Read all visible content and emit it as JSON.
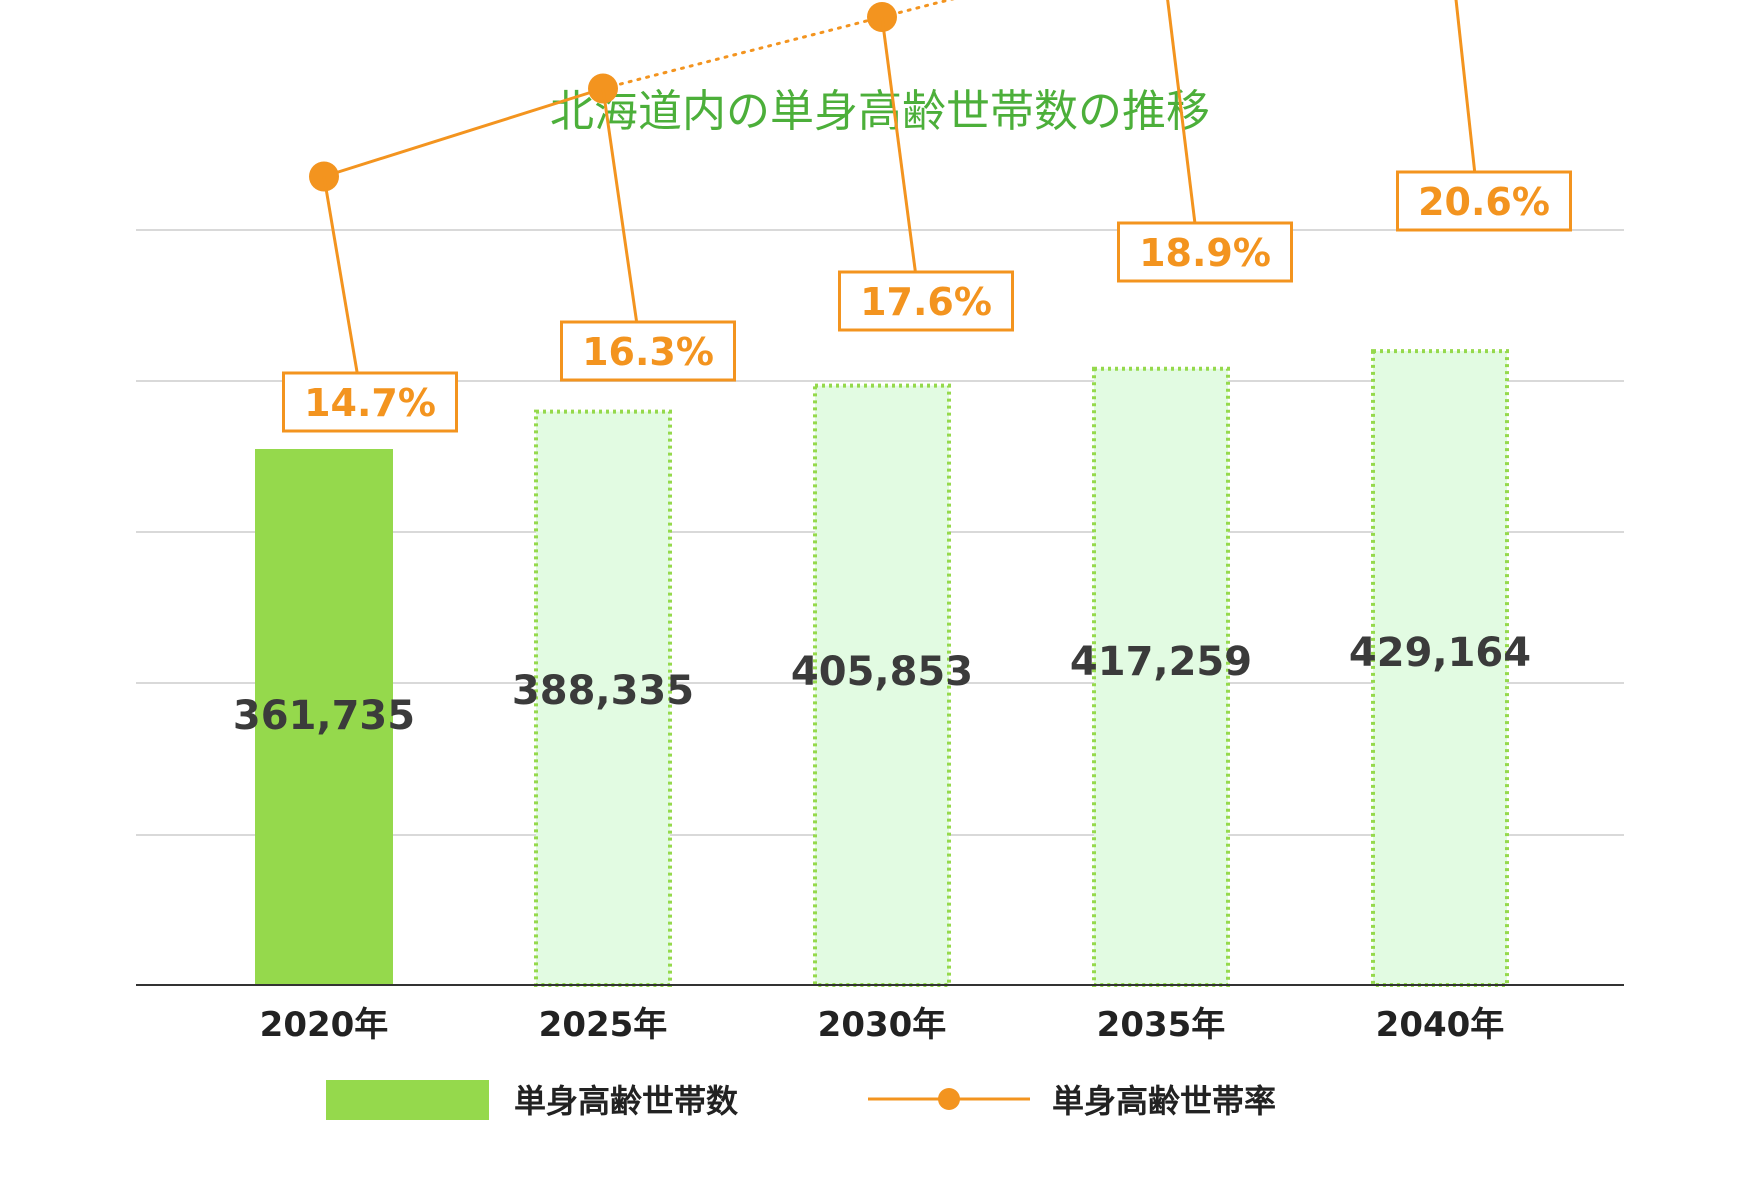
{
  "title": "北海道内の単身高齢世帯数の推移",
  "colors": {
    "title": "#4caf3a",
    "bar_actual": "#95d94c",
    "bar_projected_fill": "#e2fbe2",
    "bar_projected_border": "#95d94c",
    "line": "#f3941f",
    "grid": "#d9d9d9",
    "axis": "#333333",
    "count_text": "#3b3b3b"
  },
  "legend": {
    "bar_label": "単身高齢世帯数",
    "line_label": "単身高齢世帯率"
  },
  "chart_data": {
    "type": "bar",
    "title": "北海道内の単身高齢世帯数の推移",
    "categories": [
      "2020年",
      "2025年",
      "2030年",
      "2035年",
      "2040年"
    ],
    "series": [
      {
        "name": "単身高齢世帯数",
        "type": "bar",
        "values": [
          361735,
          388335,
          405853,
          417259,
          429164
        ],
        "labels": [
          "361,735",
          "388,335",
          "405,853",
          "417,259",
          "429,164"
        ],
        "projected": [
          false,
          true,
          true,
          true,
          true
        ]
      },
      {
        "name": "単身高齢世帯率",
        "type": "line",
        "values": [
          14.7,
          16.3,
          17.6,
          18.9,
          20.6
        ],
        "labels": [
          "14.7%",
          "16.3%",
          "17.6%",
          "18.9%",
          "20.6%"
        ],
        "projected": [
          false,
          false,
          true,
          true,
          true
        ]
      }
    ],
    "grid": true,
    "legend_position": "bottom"
  }
}
